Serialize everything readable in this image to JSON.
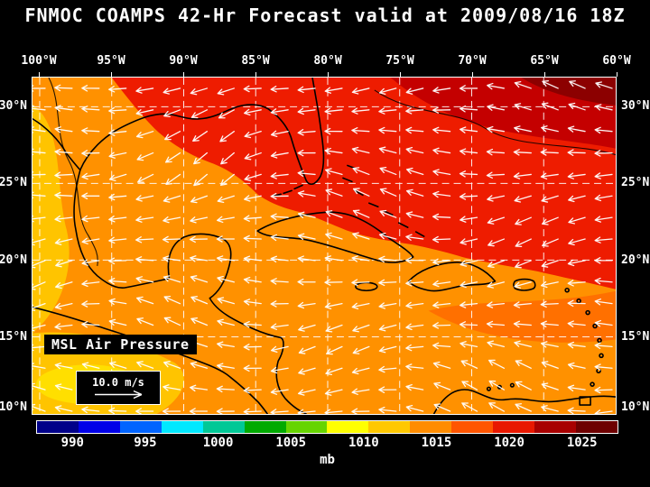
{
  "title": "FNMOC COAMPS 42-Hr Forecast valid at 2009/08/16 18Z",
  "map": {
    "overlay_label": "MSL Air Pressure",
    "wind_scale": {
      "speed_label": "10.0 m/s"
    },
    "lon_ticks": [
      "100°W",
      "95°W",
      "90°W",
      "85°W",
      "80°W",
      "75°W",
      "70°W",
      "65°W",
      "60°W"
    ],
    "lat_ticks": [
      "30°N",
      "25°N",
      "20°N",
      "15°N",
      "10°N"
    ]
  },
  "colorbar": {
    "unit_label": "mb",
    "tick_labels": [
      "990",
      "995",
      "1000",
      "1005",
      "1010",
      "1015",
      "1020",
      "1025"
    ],
    "segment_colors": [
      "#000089",
      "#0000e8",
      "#0064ff",
      "#00e8ff",
      "#00c896",
      "#00aa00",
      "#66d400",
      "#ffff00",
      "#ffc800",
      "#ff8c00",
      "#ff5500",
      "#e81800",
      "#a80000",
      "#6e0000"
    ]
  },
  "chart_data": {
    "type": "heatmap",
    "title": "FNMOC COAMPS 42-Hr Forecast valid at 2009/08/16 18Z",
    "model": "FNMOC COAMPS",
    "forecast_hour": "42-Hr",
    "valid_time": "2009/08/16 18Z",
    "field": "MSL Air Pressure",
    "unit": "mb",
    "x_axis": {
      "tick_labels": [
        "100°W",
        "95°W",
        "90°W",
        "85°W",
        "80°W",
        "75°W",
        "70°W",
        "65°W",
        "60°W"
      ],
      "range_deg_west": [
        100,
        60
      ]
    },
    "y_axis": {
      "tick_labels": [
        "30°N",
        "25°N",
        "20°N",
        "15°N",
        "10°N"
      ],
      "range_deg_north": [
        10,
        30
      ]
    },
    "colorbar_scale_mb": [
      990,
      995,
      1000,
      1005,
      1010,
      1015,
      1020,
      1025
    ],
    "wind_reference_speed": "10.0 m/s",
    "approx_field_values": [
      {
        "region": "northeast corner, western Atlantic (28-31N, 60-68W)",
        "pressure_mb": 1020
      },
      {
        "region": "Gulf of Mexico and Florida (25-31N, 80-95W)",
        "pressure_mb": 1016
      },
      {
        "region": "central Caribbean (15-22N)",
        "pressure_mb": 1014
      },
      {
        "region": "western edge over Mexico (95-100W)",
        "pressure_mb": 1012
      },
      {
        "region": "eastern Pacific, southwest corner (10-14N, 90-100W)",
        "pressure_mb": 1010
      }
    ],
    "wind_field": "easterly trade winds; white vectors point generally westward across the domain"
  }
}
